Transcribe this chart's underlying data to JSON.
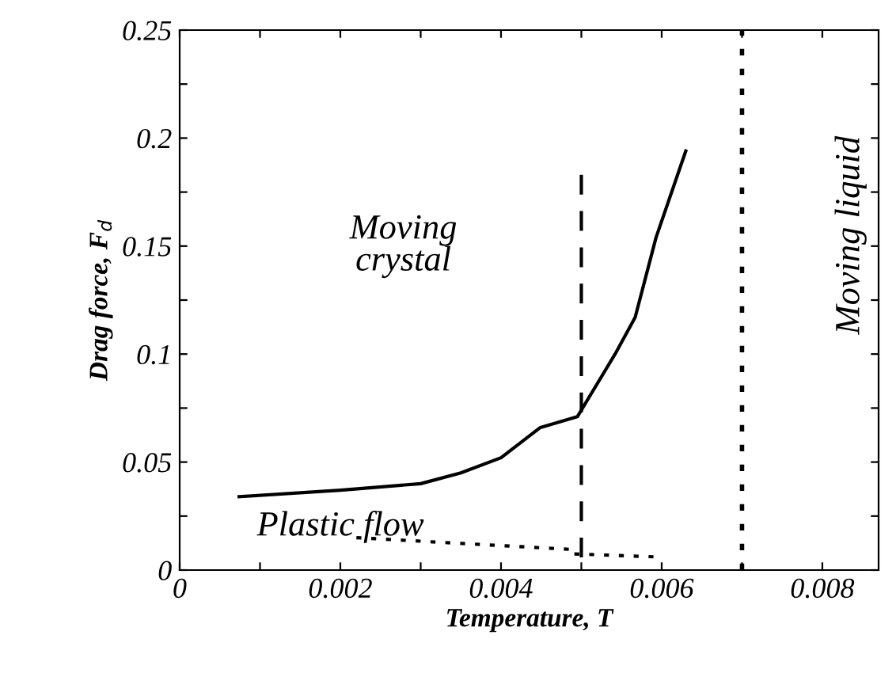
{
  "chart_data": {
    "type": "line",
    "xlabel": "Temperature, T",
    "ylabel": "Drag force, F$_{d}$",
    "xlim": [
      0,
      0.0087
    ],
    "ylim": [
      0,
      0.25
    ],
    "xticks": [
      0,
      {
        "value": 0.001,
        "label": null
      },
      0.002,
      {
        "value": 0.003,
        "label": null
      },
      0.004,
      {
        "value": 0.005,
        "label": null
      },
      0.006,
      {
        "value": 0.007,
        "label": null
      },
      0.008
    ],
    "yticks": [
      0,
      {
        "value": 0.025,
        "label": null
      },
      0.05,
      {
        "value": 0.075,
        "label": null
      },
      0.1,
      {
        "value": 0.125,
        "label": null
      },
      0.15,
      {
        "value": 0.175,
        "label": null
      },
      0.2,
      {
        "value": 0.225,
        "label": null
      },
      0.25
    ],
    "series": [
      {
        "color": "#000000",
        "line_style": "solid",
        "x": [
          0.00074,
          0.002,
          0.003,
          0.0035,
          0.004,
          0.00449,
          0.00495,
          0.00542,
          0.00567,
          0.00593,
          0.0063
        ],
        "values": [
          0.034,
          0.037,
          0.04,
          0.045,
          0.052,
          0.066,
          0.071,
          0.1,
          0.117,
          0.154,
          0.194
        ]
      },
      {
        "color": "#000000",
        "line_style": "dotted",
        "x": [
          0.0022,
          0.0049,
          0.0049,
          0.006
        ],
        "values": [
          0.015,
          0.0095,
          0.0075,
          0.006
        ]
      },
      {
        "color": "#000000",
        "line_style": "dashed",
        "x": [
          0.005,
          0.005
        ],
        "values": [
          0.183,
          0
        ]
      }
    ],
    "ref_lines": [
      {
        "axis": "x",
        "value": 0.007,
        "line_style": "dotted",
        "color": "#000000"
      }
    ],
    "annotations": [
      "Moving\ncrystal",
      "Moving liquid",
      "Plastic flow"
    ],
    "grid": false,
    "legend": false
  }
}
